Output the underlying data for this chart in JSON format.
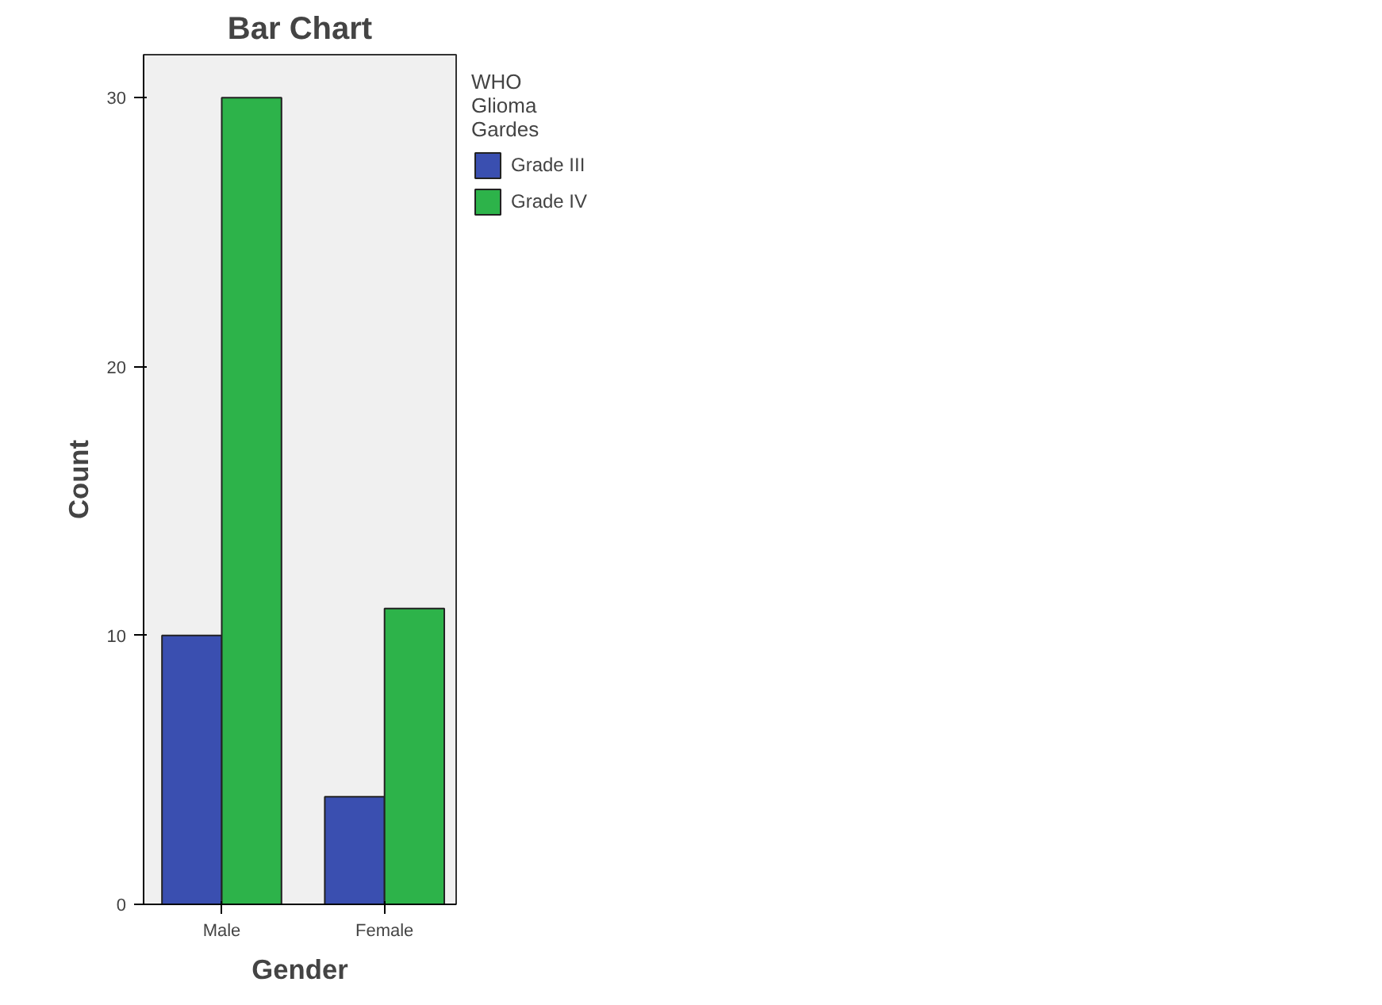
{
  "chart_data": {
    "type": "bar",
    "title": "Bar Chart",
    "xlabel": "Gender",
    "ylabel": "Count",
    "legend_title": "WHO\nGlioma\nGardes",
    "categories": [
      "Male",
      "Female"
    ],
    "series": [
      {
        "name": "Grade III",
        "color": "#3a4fb0",
        "values": [
          10,
          4
        ]
      },
      {
        "name": "Grade IV",
        "color": "#2db34a",
        "values": [
          30,
          11
        ]
      }
    ],
    "ylim": [
      0,
      31.6
    ],
    "yticks": [
      0,
      10,
      20,
      30
    ],
    "grid": false,
    "legend": "top right"
  }
}
